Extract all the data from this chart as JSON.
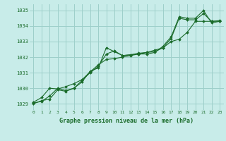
{
  "xlabel": "Graphe pression niveau de la mer (hPa)",
  "ylabel": "",
  "background_color": "#c8ece9",
  "grid_color": "#9dcfca",
  "line_color": "#1a6b2a",
  "xlim": [
    -0.5,
    23.5
  ],
  "ylim": [
    1028.6,
    1035.4
  ],
  "yticks": [
    1029,
    1030,
    1031,
    1032,
    1033,
    1034,
    1035
  ],
  "xticks": [
    0,
    1,
    2,
    3,
    4,
    5,
    6,
    7,
    8,
    9,
    10,
    11,
    12,
    13,
    14,
    15,
    16,
    17,
    18,
    19,
    20,
    21,
    22,
    23
  ],
  "series": [
    [
      1029.0,
      1029.2,
      1029.3,
      1029.9,
      1029.8,
      1030.0,
      1030.5,
      1031.0,
      1031.4,
      1032.2,
      1032.4,
      1032.1,
      1032.15,
      1032.2,
      1032.2,
      1032.3,
      1032.7,
      1033.3,
      1034.6,
      1034.5,
      1034.5,
      1035.0,
      1034.2,
      1034.3
    ],
    [
      1029.05,
      1029.15,
      1029.5,
      1030.0,
      1029.85,
      1030.0,
      1030.4,
      1031.1,
      1031.3,
      1032.6,
      1032.35,
      1032.1,
      1032.15,
      1032.25,
      1032.3,
      1032.35,
      1032.6,
      1033.2,
      1034.5,
      1034.4,
      1034.4,
      1034.8,
      1034.3,
      1034.35
    ],
    [
      1029.1,
      1029.4,
      1030.0,
      1029.95,
      1030.1,
      1030.3,
      1030.55,
      1031.05,
      1031.5,
      1031.85,
      1031.9,
      1032.0,
      1032.1,
      1032.2,
      1032.3,
      1032.45,
      1032.6,
      1033.0,
      1033.15,
      1033.6,
      1034.3,
      1034.3,
      1034.3,
      1034.3
    ]
  ]
}
